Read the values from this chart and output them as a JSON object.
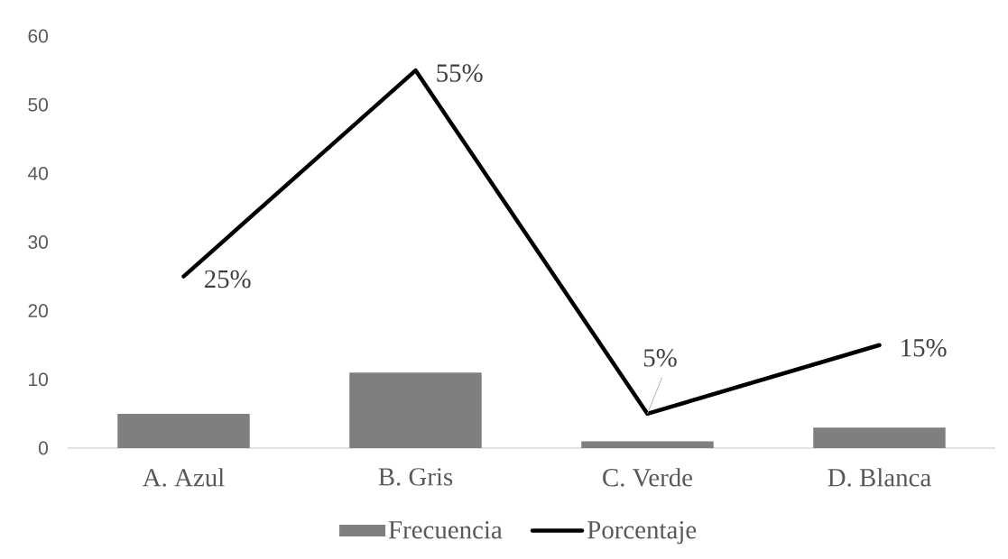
{
  "chart_data": {
    "type": "bar",
    "categories": [
      "A. Azul",
      "B. Gris",
      "C. Verde",
      "D. Blanca"
    ],
    "series": [
      {
        "name": "Frecuencia",
        "color": "#7f7f7f",
        "values": [
          5,
          11,
          1,
          3
        ]
      },
      {
        "name": "Porcentaje",
        "type": "line",
        "color": "#000000",
        "values": [
          25,
          55,
          5,
          15
        ],
        "value_labels": [
          "25%",
          "55%",
          "5%",
          "15%"
        ],
        "marker": "none",
        "line_style": "solid"
      }
    ],
    "ylim": [
      0,
      60
    ],
    "yticks": [
      0,
      10,
      20,
      30,
      40,
      50,
      60
    ],
    "legend": "bottom"
  }
}
